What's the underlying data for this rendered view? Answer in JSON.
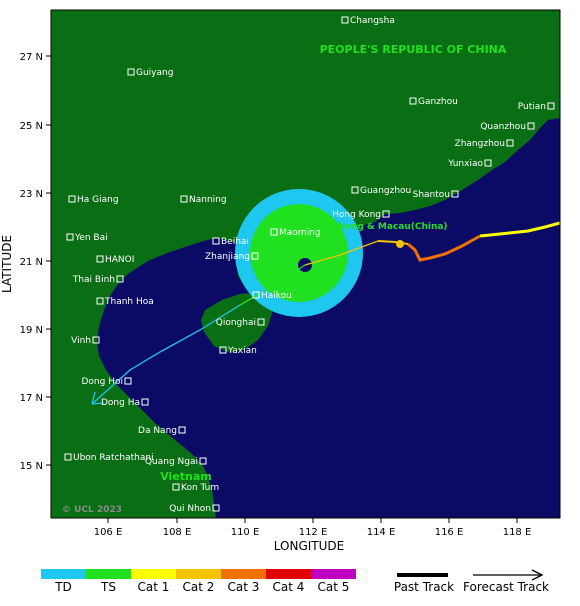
{
  "map": {
    "country_label": "PEOPLE'S REPUBLIC OF CHINA",
    "region_label": "Hongkong & Macau(China)",
    "country_label_vn": "Vietnam",
    "copyright": "© UCL 2023",
    "x_axis_title": "LONGITUDE",
    "y_axis_title": "LATITUDE",
    "x_ticks": [
      "106 E",
      "108 E",
      "110 E",
      "112 E",
      "114 E",
      "116 E",
      "118 E"
    ],
    "y_ticks": [
      "27 N",
      "25 N",
      "23 N",
      "21 N",
      "19 N",
      "17 N",
      "15 N"
    ],
    "colors": {
      "sea": "#0b0b66",
      "land": "#0a6e14",
      "td": "#1ec7f0",
      "ts": "#20e020",
      "cat1": "#ffff00",
      "cat2": "#f5c400",
      "cat3": "#f07000",
      "cat4": "#e00000",
      "cat5": "#c000c0",
      "forecast_line": "#1ec7f0"
    },
    "cities": [
      {
        "name": "Changsha"
      },
      {
        "name": "Guiyang"
      },
      {
        "name": "Ganzhou"
      },
      {
        "name": "Putian"
      },
      {
        "name": "Quanzhou"
      },
      {
        "name": "Zhangzhou"
      },
      {
        "name": "Yunxiao"
      },
      {
        "name": "Guangzhou"
      },
      {
        "name": "Shantou"
      },
      {
        "name": "Hong Kong"
      },
      {
        "name": "Nanning"
      },
      {
        "name": "Ha Giang"
      },
      {
        "name": "Yen Bai"
      },
      {
        "name": "HANOI"
      },
      {
        "name": "Thai Binh"
      },
      {
        "name": "Thanh Hoa"
      },
      {
        "name": "Beihai"
      },
      {
        "name": "Maoming"
      },
      {
        "name": "Zhanjiang"
      },
      {
        "name": "Haikou"
      },
      {
        "name": "Qionghai"
      },
      {
        "name": "Yaxian"
      },
      {
        "name": "Vinh"
      },
      {
        "name": "Dong Hoi"
      },
      {
        "name": "Dong Ha"
      },
      {
        "name": "Da Nang"
      },
      {
        "name": "Ubon Ratchathani"
      },
      {
        "name": "Quang Ngai"
      },
      {
        "name": "Kon Tum"
      },
      {
        "name": "Qui Nhon"
      }
    ]
  },
  "legend": {
    "categories": [
      "TD",
      "TS",
      "Cat 1",
      "Cat 2",
      "Cat 3",
      "Cat 4",
      "Cat 5"
    ],
    "past_track_label": "Past Track",
    "forecast_track_label": "Forecast Track"
  }
}
